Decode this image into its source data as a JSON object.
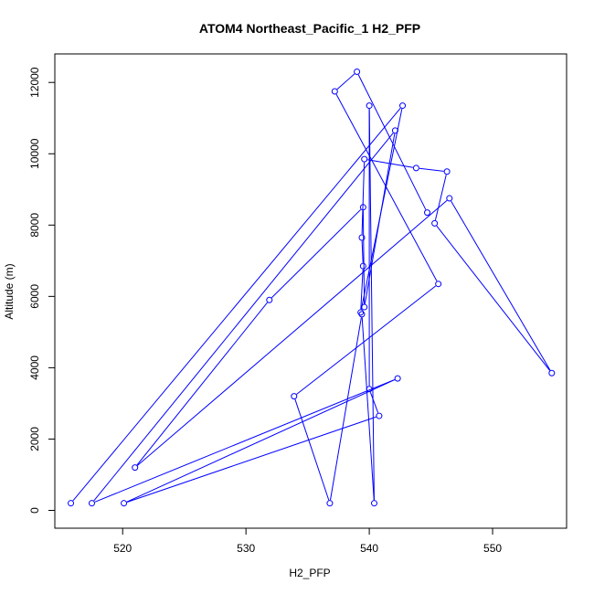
{
  "chart_data": {
    "type": "line",
    "title": "ATOM4 Northeast_Pacific_1 H2_PFP",
    "xlabel": "H2_PFP",
    "ylabel": "Altitude (m)",
    "xlim": [
      514.5,
      556
    ],
    "ylim": [
      -500,
      12800
    ],
    "x_ticks": [
      520,
      530,
      540,
      550
    ],
    "y_ticks": [
      0,
      2000,
      4000,
      6000,
      8000,
      10000,
      12000
    ],
    "x_tick_labels": [
      "520",
      "530",
      "540",
      "550"
    ],
    "y_tick_labels": [
      "0",
      "2000",
      "4000",
      "6000",
      "8000",
      "10000",
      "12000"
    ],
    "grid": false,
    "series": [
      {
        "color": "#0000ff",
        "marker": "open-circle",
        "points": [
          {
            "x": 515.8,
            "y": 200
          },
          {
            "x": 542.7,
            "y": 11350
          },
          {
            "x": 539.3,
            "y": 5550
          },
          {
            "x": 539.5,
            "y": 6850
          },
          {
            "x": 539.4,
            "y": 7650
          },
          {
            "x": 539.6,
            "y": 9850
          },
          {
            "x": 543.8,
            "y": 9600
          },
          {
            "x": 546.3,
            "y": 9500
          },
          {
            "x": 545.3,
            "y": 8050
          },
          {
            "x": 554.8,
            "y": 3850
          },
          {
            "x": 546.5,
            "y": 8750
          },
          {
            "x": 521.0,
            "y": 1200
          },
          {
            "x": 531.9,
            "y": 5900
          },
          {
            "x": 539.5,
            "y": 8500
          },
          {
            "x": 539.6,
            "y": 5700
          },
          {
            "x": 542.1,
            "y": 10650
          },
          {
            "x": 517.5,
            "y": 200
          },
          {
            "x": 542.3,
            "y": 3700
          },
          {
            "x": 520.1,
            "y": 200
          },
          {
            "x": 540.8,
            "y": 2650
          },
          {
            "x": 540.0,
            "y": 3400
          },
          {
            "x": 540.0,
            "y": 11350
          },
          {
            "x": 540.4,
            "y": 200
          },
          {
            "x": 539.4,
            "y": 5500
          },
          {
            "x": 536.8,
            "y": 200
          },
          {
            "x": 533.9,
            "y": 3200
          },
          {
            "x": 545.6,
            "y": 6350
          },
          {
            "x": 537.2,
            "y": 11750
          },
          {
            "x": 539.0,
            "y": 12300
          },
          {
            "x": 544.7,
            "y": 8350
          }
        ]
      }
    ]
  }
}
